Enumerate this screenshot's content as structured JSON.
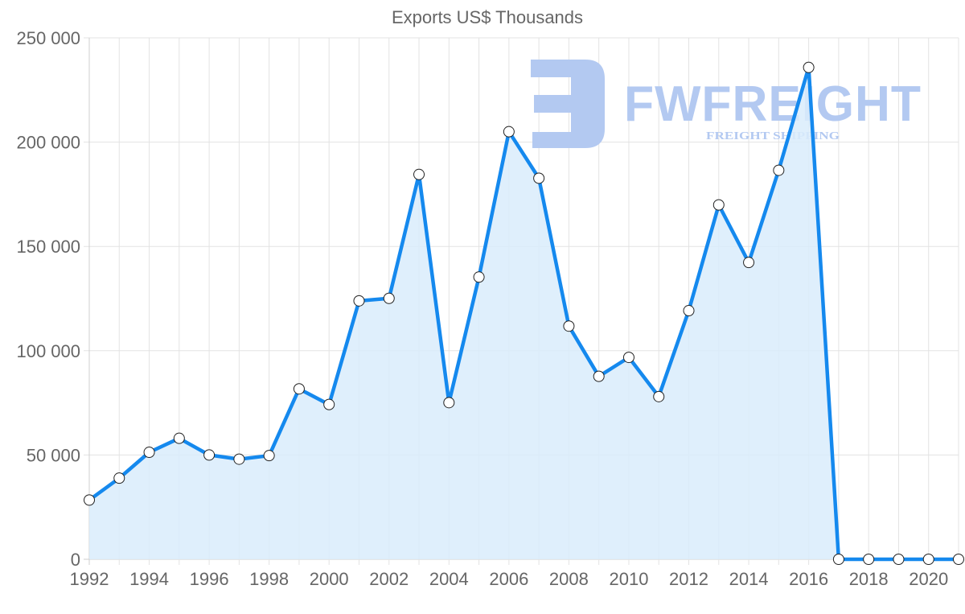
{
  "chart_data": {
    "type": "line",
    "title": "Exports US$ Thousands",
    "xlabel": "",
    "ylabel": "",
    "ylim": [
      0,
      250000
    ],
    "y_ticks": [
      0,
      50000,
      100000,
      150000,
      200000,
      250000
    ],
    "y_tick_labels": [
      "0",
      "50 000",
      "100 000",
      "150 000",
      "200 000",
      "250 000"
    ],
    "x_tick_labels": [
      "1992",
      "1994",
      "1996",
      "1998",
      "2000",
      "2002",
      "2004",
      "2006",
      "2008",
      "2010",
      "2012",
      "2014",
      "2016",
      "2018",
      "2020"
    ],
    "grid": true,
    "legend": null,
    "x": [
      1992,
      1993,
      1994,
      1995,
      1996,
      1997,
      1998,
      1999,
      2000,
      2001,
      2002,
      2003,
      2004,
      2005,
      2006,
      2007,
      2008,
      2009,
      2010,
      2011,
      2012,
      2013,
      2014,
      2015,
      2016,
      2017,
      2018,
      2019,
      2020,
      2021
    ],
    "series": [
      {
        "name": "Exports",
        "color": "#1589ee",
        "fill": "#d9ecfc",
        "values": [
          28400,
          38900,
          51300,
          58000,
          50000,
          48000,
          49700,
          81700,
          74200,
          123900,
          125100,
          184500,
          75100,
          135300,
          205000,
          182700,
          111800,
          87700,
          96800,
          78000,
          119200,
          169900,
          142300,
          186500,
          235800,
          0,
          0,
          0,
          0,
          0
        ]
      }
    ]
  },
  "watermark": {
    "brand": "FWFREIGHT",
    "tagline": "FREIGHT SHIPPING",
    "color": "#b3c9f1",
    "icon": "fwfreight-logo-icon"
  }
}
